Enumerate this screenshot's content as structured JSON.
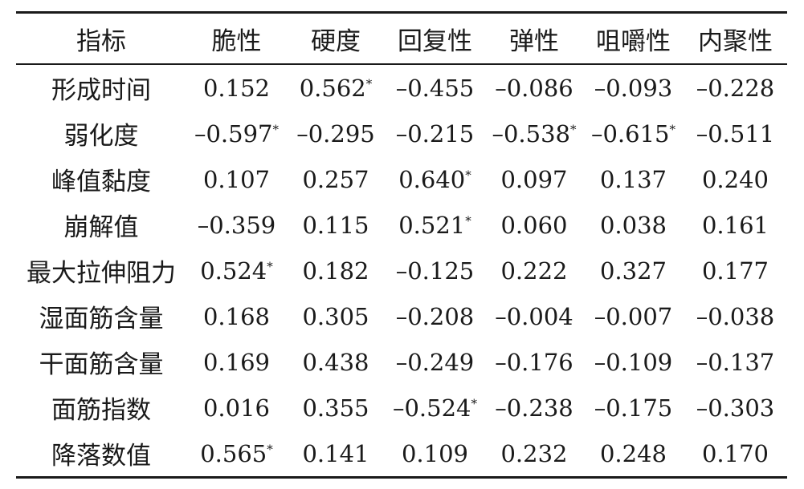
{
  "table": {
    "header": [
      "指标",
      "脆性",
      "硬度",
      "回复性",
      "弹性",
      "咀嚼性",
      "内聚性"
    ],
    "rows": [
      {
        "label": "形成时间",
        "cells": [
          {
            "value": "0.152",
            "sig": ""
          },
          {
            "value": "0.562",
            "sig": "*"
          },
          {
            "value": "–0.455",
            "sig": ""
          },
          {
            "value": "–0.086",
            "sig": ""
          },
          {
            "value": "–0.093",
            "sig": ""
          },
          {
            "value": "–0.228",
            "sig": ""
          }
        ]
      },
      {
        "label": "弱化度",
        "cells": [
          {
            "value": "–0.597",
            "sig": "*"
          },
          {
            "value": "–0.295",
            "sig": ""
          },
          {
            "value": "–0.215",
            "sig": ""
          },
          {
            "value": "–0.538",
            "sig": "*"
          },
          {
            "value": "–0.615",
            "sig": "*"
          },
          {
            "value": "–0.511",
            "sig": ""
          }
        ]
      },
      {
        "label": "峰值黏度",
        "cells": [
          {
            "value": "0.107",
            "sig": ""
          },
          {
            "value": "0.257",
            "sig": ""
          },
          {
            "value": "0.640",
            "sig": "*"
          },
          {
            "value": "0.097",
            "sig": ""
          },
          {
            "value": "0.137",
            "sig": ""
          },
          {
            "value": "0.240",
            "sig": ""
          }
        ]
      },
      {
        "label": "崩解值",
        "cells": [
          {
            "value": "–0.359",
            "sig": ""
          },
          {
            "value": "0.115",
            "sig": ""
          },
          {
            "value": "0.521",
            "sig": "*"
          },
          {
            "value": "0.060",
            "sig": ""
          },
          {
            "value": "0.038",
            "sig": ""
          },
          {
            "value": "0.161",
            "sig": ""
          }
        ]
      },
      {
        "label": "最大拉伸阻力",
        "cells": [
          {
            "value": "0.524",
            "sig": "*"
          },
          {
            "value": "0.182",
            "sig": ""
          },
          {
            "value": "–0.125",
            "sig": ""
          },
          {
            "value": "0.222",
            "sig": ""
          },
          {
            "value": "0.327",
            "sig": ""
          },
          {
            "value": "0.177",
            "sig": ""
          }
        ]
      },
      {
        "label": "湿面筋含量",
        "cells": [
          {
            "value": "0.168",
            "sig": ""
          },
          {
            "value": "0.305",
            "sig": ""
          },
          {
            "value": "–0.208",
            "sig": ""
          },
          {
            "value": "–0.004",
            "sig": ""
          },
          {
            "value": "–0.007",
            "sig": ""
          },
          {
            "value": "–0.038",
            "sig": ""
          }
        ]
      },
      {
        "label": "干面筋含量",
        "cells": [
          {
            "value": "0.169",
            "sig": ""
          },
          {
            "value": "0.438",
            "sig": ""
          },
          {
            "value": "–0.249",
            "sig": ""
          },
          {
            "value": "–0.176",
            "sig": ""
          },
          {
            "value": "–0.109",
            "sig": ""
          },
          {
            "value": "–0.137",
            "sig": ""
          }
        ]
      },
      {
        "label": "面筋指数",
        "cells": [
          {
            "value": "0.016",
            "sig": ""
          },
          {
            "value": "0.355",
            "sig": ""
          },
          {
            "value": "–0.524",
            "sig": "*"
          },
          {
            "value": "–0.238",
            "sig": ""
          },
          {
            "value": "–0.175",
            "sig": ""
          },
          {
            "value": "–0.303",
            "sig": ""
          }
        ]
      },
      {
        "label": "降落数值",
        "cells": [
          {
            "value": "0.565",
            "sig": "*"
          },
          {
            "value": "0.141",
            "sig": ""
          },
          {
            "value": "0.109",
            "sig": ""
          },
          {
            "value": "0.232",
            "sig": ""
          },
          {
            "value": "0.248",
            "sig": ""
          },
          {
            "value": "0.170",
            "sig": ""
          }
        ]
      }
    ]
  }
}
